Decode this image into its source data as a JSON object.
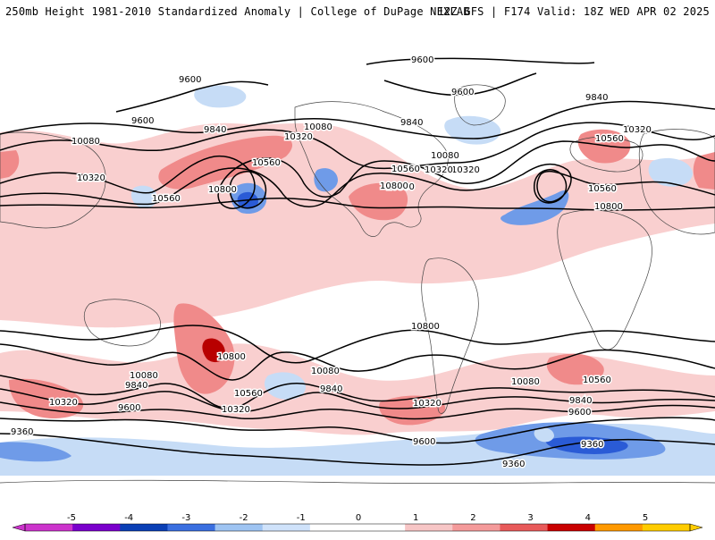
{
  "header": {
    "title_left": "250mb Height 1981-2010 Standardized Anomaly | College of DuPage NEXLAB",
    "title_right": "12Z GFS | F174 Valid: 18Z WED APR 02 2025"
  },
  "contour_labels": [
    "9600",
    "9600",
    "9600",
    "9840",
    "9840",
    "9840",
    "10080",
    "10080",
    "10080",
    "10320",
    "10320",
    "10320",
    "10560",
    "10560",
    "10560",
    "10800",
    "10800",
    "10800",
    "9360",
    "9360",
    "9360"
  ],
  "label_items": [
    {
      "text": "9600"
    },
    {
      "text": "9600"
    },
    {
      "text": "9600"
    },
    {
      "text": "9840"
    },
    {
      "text": "9840"
    },
    {
      "text": "9840"
    },
    {
      "text": "10080"
    },
    {
      "text": "10080"
    },
    {
      "text": "10080"
    },
    {
      "text": "10320"
    },
    {
      "text": "10320"
    },
    {
      "text": "10320"
    },
    {
      "text": "10560"
    },
    {
      "text": "10560"
    },
    {
      "text": "10560"
    },
    {
      "text": "10800"
    },
    {
      "text": "10800"
    },
    {
      "text": "10800"
    },
    {
      "text": "10560"
    },
    {
      "text": "10800"
    },
    {
      "text": "10320"
    },
    {
      "text": "10560"
    },
    {
      "text": "10320"
    },
    {
      "text": "9600"
    },
    {
      "text": "9360"
    },
    {
      "text": "9360"
    },
    {
      "text": "9360"
    },
    {
      "text": "10080"
    },
    {
      "text": "9840"
    },
    {
      "text": "10560"
    },
    {
      "text": "10800"
    },
    {
      "text": "10080"
    },
    {
      "text": "9840"
    },
    {
      "text": "10320"
    },
    {
      "text": "9600"
    },
    {
      "text": "10800"
    },
    {
      "text": "10560"
    },
    {
      "text": "10080"
    },
    {
      "text": "10320"
    },
    {
      "text": "9840"
    },
    {
      "text": "9600"
    },
    {
      "text": "10320"
    },
    {
      "text": "9600"
    }
  ],
  "colorbar": {
    "ticks": [
      "-5",
      "-4",
      "-3",
      "-2",
      "-1",
      "0",
      "1",
      "2",
      "3",
      "4",
      "5"
    ],
    "colors": [
      "#cc33cc",
      "#7a00cc",
      "#0a3fb5",
      "#3a6fe0",
      "#9ec4f2",
      "#cfe2fa",
      "#ffffff",
      "#ffffff",
      "#f7c6c6",
      "#f49a9a",
      "#e85a5a",
      "#c90000",
      "#ff9900",
      "#ffcc00"
    ]
  },
  "colors": {
    "pos_light": "#f9cfcf",
    "pos_mid": "#f08a8a",
    "pos_strong": "#e24a4a",
    "pos_extreme": "#b80000",
    "neg_light": "#c6dcf6",
    "neg_mid": "#6f9be8",
    "neg_strong": "#2a5bd6",
    "neg_extreme": "#0d3aa8"
  }
}
